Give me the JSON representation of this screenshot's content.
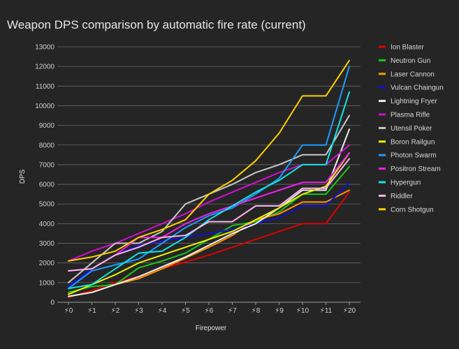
{
  "chart_data": {
    "type": "line",
    "title": "Weapon DPS comparison by automatic fire rate (current)",
    "xlabel": "Firepower",
    "ylabel": "DPS",
    "ylim": [
      0,
      13000
    ],
    "yticks": [
      0,
      1000,
      2000,
      3000,
      4000,
      5000,
      6000,
      7000,
      8000,
      9000,
      10000,
      11000,
      12000,
      13000
    ],
    "categories": [
      "⚡0",
      "⚡1",
      "⚡2",
      "⚡3",
      "⚡4",
      "⚡5",
      "⚡6",
      "⚡7",
      "⚡8",
      "⚡9",
      "⚡10",
      "⚡11",
      "⚡20"
    ],
    "grid": true,
    "legend_position": "right",
    "series": [
      {
        "name": "Ion Blaster",
        "color": "#e00000",
        "values": [
          250,
          600,
          1000,
          1300,
          1700,
          2050,
          2400,
          2800,
          3200,
          3600,
          4000,
          4000,
          5600
        ]
      },
      {
        "name": "Neutron Gun",
        "color": "#19c819",
        "values": [
          500,
          800,
          900,
          1750,
          2100,
          2500,
          3200,
          3900,
          4100,
          4600,
          5500,
          5500,
          6900
        ]
      },
      {
        "name": "Laser Cannon",
        "color": "#ff9600",
        "values": [
          300,
          500,
          900,
          1200,
          1700,
          2250,
          2800,
          3400,
          4200,
          4500,
          5100,
          5100,
          5700
        ]
      },
      {
        "name": "Vulcan Chaingun",
        "color": "#1010d8",
        "values": [
          800,
          1700,
          2400,
          2900,
          3100,
          3300,
          3500,
          3700,
          4000,
          4300,
          4900,
          4900,
          6100
        ]
      },
      {
        "name": "Lightning Fryer",
        "color": "#f0f0f0",
        "values": [
          300,
          500,
          900,
          1300,
          1800,
          2300,
          2900,
          3500,
          4000,
          4800,
          5700,
          5700,
          8800
        ]
      },
      {
        "name": "Plasma Rifle",
        "color": "#d010d0",
        "values": [
          2100,
          2600,
          3000,
          3500,
          4000,
          4500,
          5100,
          5600,
          6100,
          6600,
          7000,
          7000,
          8000
        ]
      },
      {
        "name": "Utensil Poker",
        "color": "#c8c8c8",
        "values": [
          1000,
          2000,
          3000,
          3000,
          3600,
          5000,
          5500,
          6000,
          6600,
          7000,
          7500,
          7500,
          9500
        ]
      },
      {
        "name": "Boron Railgun",
        "color": "#f0f000",
        "values": [
          400,
          900,
          1400,
          2000,
          2400,
          2800,
          3200,
          3600,
          4200,
          4800,
          5500,
          5900,
          7600
        ]
      },
      {
        "name": "Photon Swarm",
        "color": "#1e9bff",
        "values": [
          700,
          1600,
          1900,
          2200,
          3000,
          3800,
          4400,
          4800,
          5500,
          6300,
          8000,
          8000,
          12000
        ]
      },
      {
        "name": "Positron Stream",
        "color": "#ee20ee",
        "values": [
          1600,
          1700,
          2400,
          3300,
          3300,
          4000,
          4500,
          4900,
          5300,
          5700,
          6100,
          6100,
          7600
        ]
      },
      {
        "name": "Hypergun",
        "color": "#10e6e6",
        "values": [
          700,
          900,
          1700,
          2500,
          2600,
          3300,
          4200,
          4900,
          5600,
          6200,
          7000,
          7000,
          10700
        ]
      },
      {
        "name": "Riddler",
        "color": "#ffb4ee",
        "values": [
          1600,
          1700,
          2400,
          2800,
          3300,
          3400,
          4100,
          4100,
          4900,
          4900,
          5800,
          5800,
          7300
        ]
      },
      {
        "name": "Corn Shotgun",
        "color": "#ffd000",
        "values": [
          2100,
          2300,
          2600,
          3300,
          3700,
          4200,
          5500,
          6200,
          7200,
          8600,
          10500,
          10500,
          12300
        ]
      }
    ]
  }
}
